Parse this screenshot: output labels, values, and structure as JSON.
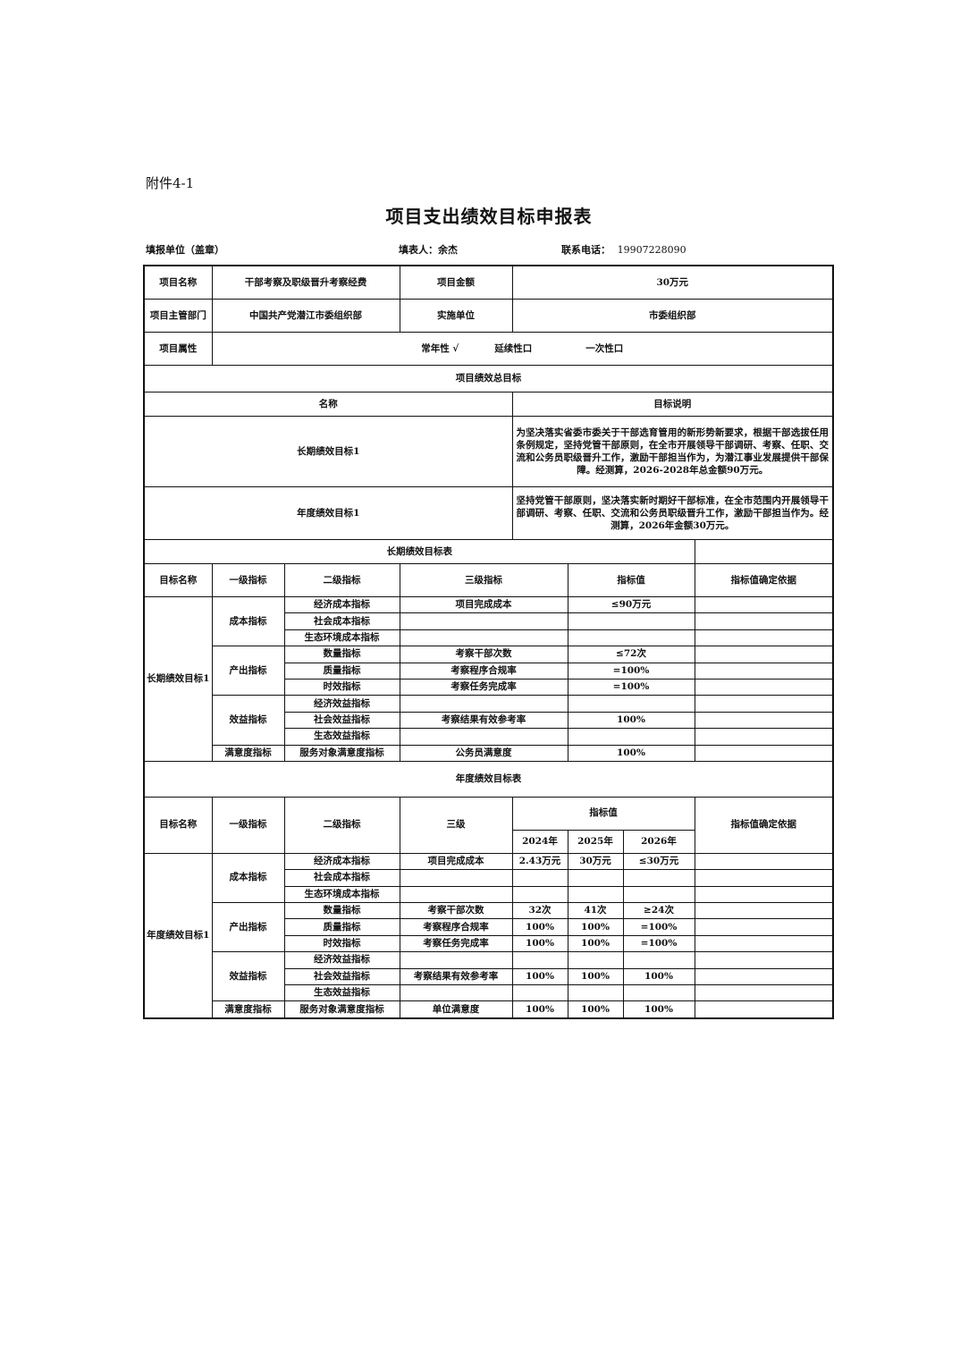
{
  "attachment": "附件4-1",
  "title": "项目支出绩效目标申报表",
  "meta": {
    "unit_label": "填报单位（盖章）",
    "filler": "填表人：余杰",
    "phone_label": "联系电话：",
    "phone": "19907228090"
  },
  "project": {
    "name_label": "项目名称",
    "name": "干部考察及职级晋升考察经费",
    "amount_label": "项目金额",
    "amount": "30万元",
    "dept_label": "项目主管部门",
    "dept": "中国共产党潜江市委组织部",
    "impl_label": "实施单位",
    "impl": "市委组织部",
    "attr_label": "项目属性",
    "attr_regular": "常年性 √",
    "attr_continue": "延续性口",
    "attr_once": "一次性口"
  },
  "overall": {
    "title": "项目绩效总目标",
    "col_name": "名称",
    "col_desc": "目标说明",
    "rows": [
      {
        "name": "长期绩效目标1",
        "desc": "为坚决落实省委市委关于干部选育管用的新形势新要求，根据干部选拔任用条例规定，坚持党管干部原则，在全市开展领导干部调研、考察、任职、交流和公务员职级晋升工作，激励干部担当作为，为潜江事业发展提供干部保障。经测算，2026-2028年总金额90万元。"
      },
      {
        "name": "年度绩效目标1",
        "desc": "坚持党管干部原则，坚决落实新时期好干部标准，在全市范围内开展领导干部调研、考察、任职、交流和公务员职级晋升工作，激励干部担当作为。经测算，2026年金额30万元。"
      }
    ]
  },
  "long_term": {
    "title": "长期绩效目标表",
    "headers": [
      "目标名称",
      "一级指标",
      "二级指标",
      "三级指标",
      "指标值",
      "指标值确定依据"
    ],
    "goal": "长期绩效目标1",
    "groups": [
      {
        "l1": "成本指标",
        "rows": [
          {
            "l2": "经济成本指标",
            "l3": "项目完成成本",
            "v": "≤90万元"
          },
          {
            "l2": "社会成本指标",
            "l3": "",
            "v": ""
          },
          {
            "l2": "生态环境成本指标",
            "l3": "",
            "v": ""
          }
        ]
      },
      {
        "l1": "产出指标",
        "rows": [
          {
            "l2": "数量指标",
            "l3": "考察干部次数",
            "v": "≤72次"
          },
          {
            "l2": "质量指标",
            "l3": "考察程序合规率",
            "v": "=100%"
          },
          {
            "l2": "时效指标",
            "l3": "考察任务完成率",
            "v": "=100%"
          }
        ]
      },
      {
        "l1": "效益指标",
        "rows": [
          {
            "l2": "经济效益指标",
            "l3": "",
            "v": ""
          },
          {
            "l2": "社会效益指标",
            "l3": "考察结果有效参考率",
            "v": "100%"
          },
          {
            "l2": "生态效益指标",
            "l3": "",
            "v": ""
          }
        ]
      },
      {
        "l1": "满意度指标",
        "rows": [
          {
            "l2": "服务对象满意度指标",
            "l3": "公务员满意度",
            "v": "100%"
          }
        ]
      }
    ]
  },
  "annual": {
    "title": "年度绩效目标表",
    "headers": [
      "目标名称",
      "一级指标",
      "二级指标",
      "三级",
      "指标值",
      "指标值确定依据"
    ],
    "years": [
      "2024年",
      "2025年",
      "2026年"
    ],
    "goal": "年度绩效目标1",
    "groups": [
      {
        "l1": "成本指标",
        "rows": [
          {
            "l2": "经济成本指标",
            "l3": "项目完成成本",
            "v": [
              "2.43万元",
              "30万元",
              "≤30万元"
            ]
          },
          {
            "l2": "社会成本指标",
            "l3": "",
            "v": [
              "",
              "",
              ""
            ]
          },
          {
            "l2": "生态环境成本指标",
            "l3": "",
            "v": [
              "",
              "",
              ""
            ]
          }
        ]
      },
      {
        "l1": "产出指标",
        "rows": [
          {
            "l2": "数量指标",
            "l3": "考察干部次数",
            "v": [
              "32次",
              "41次",
              "≥24次"
            ]
          },
          {
            "l2": "质量指标",
            "l3": "考察程序合规率",
            "v": [
              "100%",
              "100%",
              "=100%"
            ]
          },
          {
            "l2": "时效指标",
            "l3": "考察任务完成率",
            "v": [
              "100%",
              "100%",
              "=100%"
            ]
          }
        ]
      },
      {
        "l1": "效益指标",
        "rows": [
          {
            "l2": "经济效益指标",
            "l3": "",
            "v": [
              "",
              "",
              ""
            ]
          },
          {
            "l2": "社会效益指标",
            "l3": "考察结果有效参考率",
            "v": [
              "100%",
              "100%",
              "100%"
            ]
          },
          {
            "l2": "生态效益指标",
            "l3": "",
            "v": [
              "",
              "",
              ""
            ]
          }
        ]
      },
      {
        "l1": "满意度指标",
        "rows": [
          {
            "l2": "服务对象满意度指标",
            "l3": "单位满意度",
            "v": [
              "100%",
              "100%",
              "100%"
            ]
          }
        ]
      }
    ]
  }
}
